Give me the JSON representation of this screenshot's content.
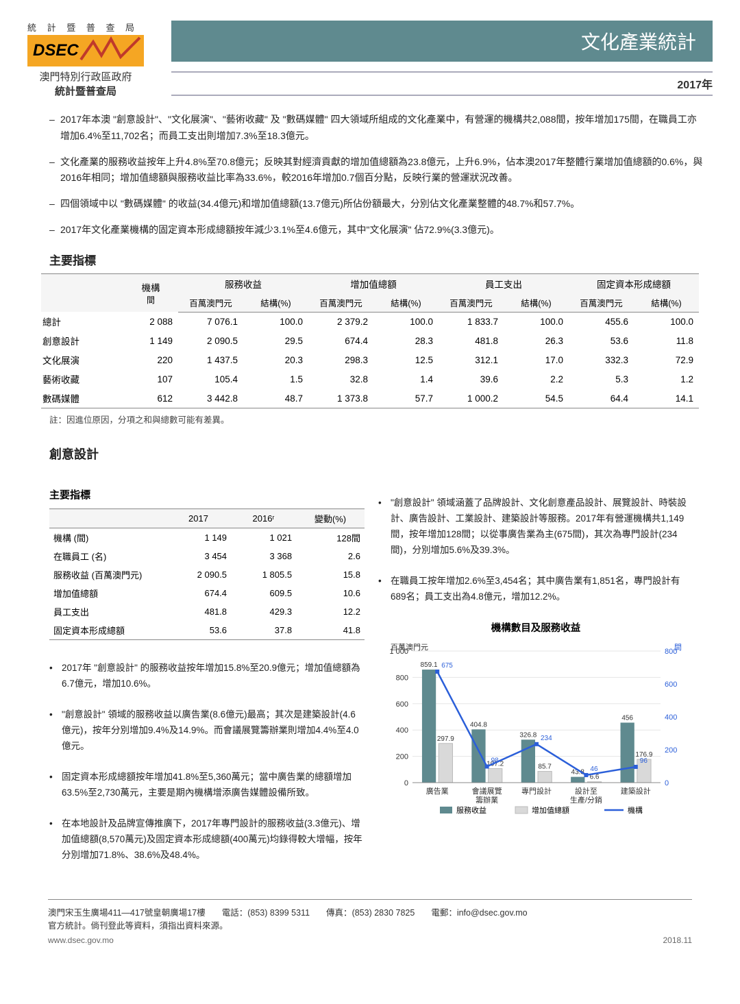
{
  "header": {
    "agency_letters": "統 計 暨 普 查 局",
    "logo_text": "DSEC",
    "gov_line1": "澳門特別行政區政府",
    "gov_line2": "統計暨普查局",
    "doc_title": "文化產業統計",
    "year": "2017年",
    "logo_bg": "#f5a623",
    "teal": "#5f8a8f"
  },
  "highlights": [
    "2017年本澳 \"創意設計\"、\"文化展演\"、\"藝術收藏\" 及 \"數碼媒體\" 四大領域所組成的文化產業中，有營運的機構共2,088間，按年增加175間，在職員工亦增加6.4%至11,702名；而員工支出則增加7.3%至18.3億元。",
    "文化產業的服務收益按年上升4.8%至70.8億元；反映其對經濟貢獻的增加值總額為23.8億元，上升6.9%，佔本澳2017年整體行業增加值總額的0.6%，與2016年相同；增加值總額與服務收益比率為33.6%，較2016年增加0.7個百分點，反映行業的營運狀況改善。",
    "四個領域中以 \"數碼媒體\" 的收益(34.4億元)和增加值總額(13.7億元)所佔份額最大，分別佔文化產業整體的48.7%和57.7%。",
    "2017年文化產業機構的固定資本形成總額按年減少3.1%至4.6億元，其中\"文化展演\" 佔72.9%(3.3億元)。"
  ],
  "main_table": {
    "title": "主要指標",
    "head1": [
      "",
      "機構",
      "服務收益",
      "增加值總額",
      "員工支出",
      "固定資本形成總額"
    ],
    "head2": [
      "",
      "間",
      "百萬澳門元",
      "結構(%)",
      "百萬澳門元",
      "結構(%)",
      "百萬澳門元",
      "結構(%)",
      "百萬澳門元",
      "結構(%)"
    ],
    "rows": [
      [
        "總計",
        "2 088",
        "7 076.1",
        "100.0",
        "2 379.2",
        "100.0",
        "1 833.7",
        "100.0",
        "455.6",
        "100.0"
      ],
      [
        "創意設計",
        "1 149",
        "2 090.5",
        "29.5",
        "674.4",
        "28.3",
        "481.8",
        "26.3",
        "53.6",
        "11.8"
      ],
      [
        "文化展演",
        "220",
        "1 437.5",
        "20.3",
        "298.3",
        "12.5",
        "312.1",
        "17.0",
        "332.3",
        "72.9"
      ],
      [
        "藝術收藏",
        "107",
        "105.4",
        "1.5",
        "32.8",
        "1.4",
        "39.6",
        "2.2",
        "5.3",
        "1.2"
      ],
      [
        "數碼媒體",
        "612",
        "3 442.8",
        "48.7",
        "1 373.8",
        "57.7",
        "1 000.2",
        "54.5",
        "64.4",
        "14.1"
      ]
    ],
    "note": "註：因進位原因，分項之和與總數可能有差異。"
  },
  "section_cd": {
    "title": "創意設計",
    "sub_title": "主要指標",
    "head": [
      "",
      "2017",
      "2016ʳ",
      "變動(%)"
    ],
    "rows": [
      [
        "機構 (間)",
        "1 149",
        "1 021",
        "128間"
      ],
      [
        "在職員工 (名)",
        "3 454",
        "3 368",
        "2.6"
      ],
      [
        "服務收益 (百萬澳門元)",
        "2 090.5",
        "1 805.5",
        "15.8"
      ],
      [
        "增加值總額",
        "674.4",
        "609.5",
        "10.6"
      ],
      [
        "員工支出",
        "481.8",
        "429.3",
        "12.2"
      ],
      [
        "固定資本形成總額",
        "53.6",
        "37.8",
        "41.8"
      ]
    ],
    "left_notes": [
      "2017年 \"創意設計\" 的服務收益按年增加15.8%至20.9億元；增加值總額為6.7億元，增加10.6%。",
      "\"創意設計\" 領域的服務收益以廣告業(8.6億元)最高；其次是建築設計(4.6億元)，按年分別增加9.4%及14.9%。而會議展覽籌辦業則增加4.4%至4.0億元。",
      "固定資本形成總額按年增加41.8%至5,360萬元；當中廣告業的總額增加63.5%至2,730萬元，主要是期內機構增添廣告媒體設備所致。",
      "在本地設計及品牌宣傳推廣下，2017年專門設計的服務收益(3.3億元)、增加值總額(8,570萬元)及固定資本形成總額(400萬元)均錄得較大增幅，按年分別增加71.8%、38.6%及48.4%。"
    ],
    "right_notes": [
      "\"創意設計\" 領域涵蓋了品牌設計、文化創意產品設計、展覽設計、時裝設計、廣告設計、工業設計、建築設計等服務。2017年有營運機構共1,149間，按年增加128間；以從事廣告業為主(675間)，其次為專門設計(234間)，分別增加5.6%及39.3%。",
      "在職員工按年增加2.6%至3,454名；其中廣告業有1,851名，專門設計有689名；員工支出為4.8億元，增加12.2%。"
    ],
    "chart": {
      "title": "機構數目及服務收益",
      "y_left_label": "百萬澳門元",
      "y_right_label": "間",
      "categories": [
        "廣告業",
        "會議展覽\n籌辦業",
        "專門設計",
        "設計至\n生產/分銷",
        "建築設計"
      ],
      "series_revenue": {
        "label": "服務收益",
        "color": "#5f8a8f",
        "values": [
          859.1,
          404.8,
          326.8,
          43.8,
          456.0
        ]
      },
      "series_value_added": {
        "label": "增加值總額",
        "color": "#d9d9d9",
        "values": [
          297.9,
          107.2,
          85.7,
          6.6,
          176.9
        ]
      },
      "series_estab": {
        "label": "機構",
        "color": "#2b5fd9",
        "values": [
          675,
          98,
          234,
          46,
          96
        ]
      },
      "y_left": {
        "min": 0,
        "max": 1000,
        "step": 200
      },
      "y_right": {
        "min": 0,
        "max": 800,
        "step": 200
      },
      "colors": {
        "axis": "#888",
        "grid": "#e5e5e5",
        "text": "#333",
        "right_text": "#2b5fd9"
      }
    }
  },
  "footer": {
    "addr": "澳門宋玉生廣場411—417號皇朝廣場17樓",
    "tel_label": "電話：",
    "tel": "(853) 8399 5311",
    "fax_label": "傳真：",
    "fax": "(853) 2830 7825",
    "email_label": "電郵：",
    "email": "info@dsec.gov.mo",
    "line2": "官方統計。倘刊登此等資料，須指出資料來源。",
    "site": "www.dsec.gov.mo",
    "pub": "2018.11"
  }
}
